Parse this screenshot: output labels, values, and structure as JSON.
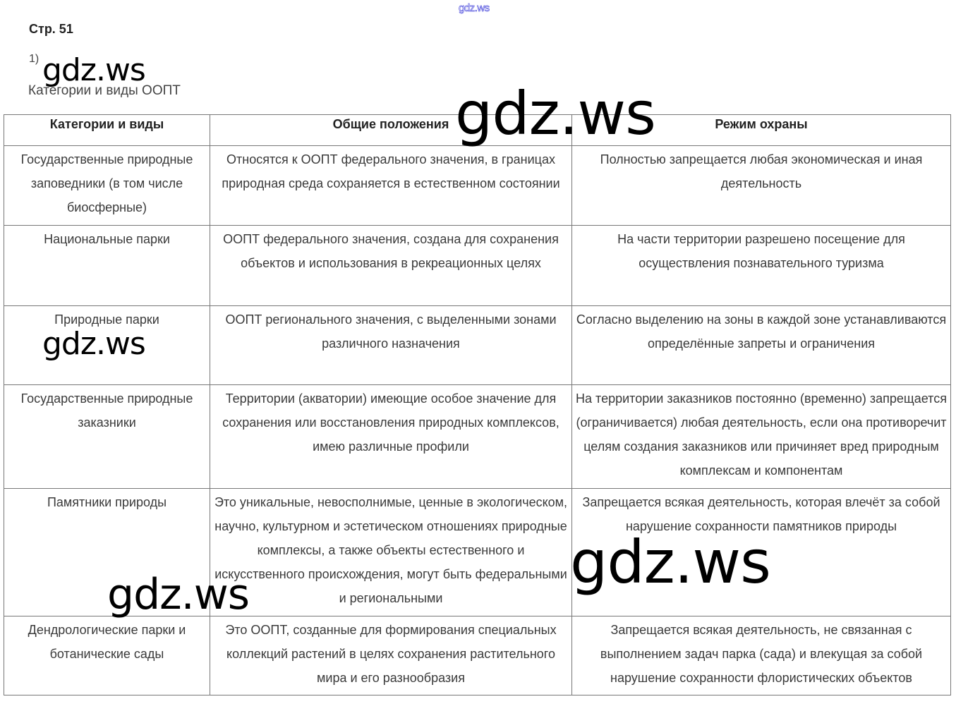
{
  "header": {
    "site_mark": "gdz.ws",
    "page": "Стр. 51",
    "task": "1)",
    "caption": "Категории и виды ООПТ"
  },
  "table": {
    "columns": [
      "Категории и виды",
      "Общие положения",
      "Режим охраны"
    ],
    "rows": [
      [
        "Государственные природные заповедники (в том числе биосферные)",
        "Относятся к ООПТ федерального значения, в границах природная среда сохраняется в естественном состоянии",
        "Полностью запрещается любая экономическая и иная деятельность"
      ],
      [
        "Национальные парки",
        "ООПТ федерального значения, создана для сохранения объектов и использования в рекреационных целях",
        "На части территории разрешено посещение для осуществления познавательного туризма"
      ],
      [
        "Природные парки",
        "ООПТ регионального значения, с выделенными зонами различного назначения",
        "Согласно выделению на зоны в каждой зоне устанавливаются определённые запреты и ограничения"
      ],
      [
        "Государственные природные заказники",
        "Территории (акватории) имеющие особое значение для сохранения или восстановления природных комплексов, имею различные профили",
        "На территории заказников постоянно (временно) запрещается (ограничивается) любая деятельность, если она противоречит целям создания заказников или причиняет вред природным комплексам и компонентам"
      ],
      [
        "Памятники природы",
        "Это уникальные, невосполнимые, ценные в экологическом, научно, культурном и эстетическом отношениях природные комплексы, а также объекты естественного и искусственного происхождения, могут быть федеральными и региональными",
        "Запрещается всякая деятельность, которая влечёт за собой нарушение сохранности памятников природы"
      ],
      [
        "Дендрологические парки и ботанические сады",
        "Это ООПТ, созданные для формирования специальных коллекций растений в целях сохранения растительного мира и его разнообразия",
        "Запрещается всякая деятельность, не связанная с выполнением задач парка (сада) и влекущая за собой нарушение сохранности флористических объектов"
      ]
    ]
  },
  "watermarks": [
    "gdz.ws",
    "gdz.ws",
    "gdz.ws",
    "gdz.ws",
    "gdz.ws"
  ]
}
